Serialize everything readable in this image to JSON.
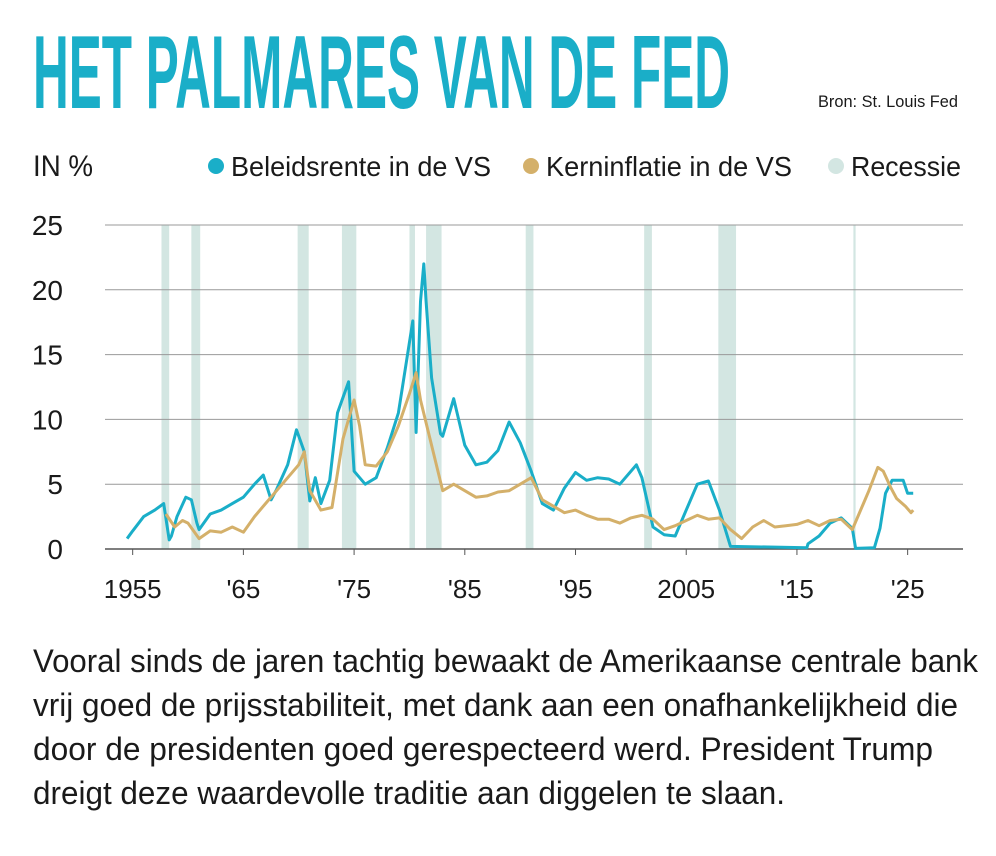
{
  "chart_data": {
    "type": "line",
    "title": "HET PALMARES VAN DE FED",
    "source": "Bron: St. Louis Fed",
    "y_label": "IN %",
    "xlim": [
      1952.5,
      2030
    ],
    "xticks": [
      1955,
      {
        "value": 1965,
        "label": "'65"
      },
      {
        "value": 1975,
        "label": "'75"
      },
      {
        "value": 1985,
        "label": "'85"
      },
      {
        "value": 1995,
        "label": "'95"
      },
      2005,
      {
        "value": 2015,
        "label": "'15"
      },
      {
        "value": 2025,
        "label": "'25"
      }
    ],
    "ylim": [
      0,
      25
    ],
    "yticks": [
      0,
      5,
      10,
      15,
      20,
      25
    ],
    "grid": true,
    "recession": {
      "name": "Recessie",
      "color": "#d3e6e2",
      "periods": [
        [
          1957.6,
          1958.3
        ],
        [
          1960.3,
          1961.1
        ],
        [
          1969.9,
          1970.9
        ],
        [
          1973.9,
          1975.2
        ],
        [
          1980.0,
          1980.5
        ],
        [
          1981.5,
          1982.9
        ],
        [
          1990.5,
          1991.2
        ],
        [
          2001.2,
          2001.9
        ],
        [
          2007.9,
          2009.5
        ],
        [
          2020.1,
          2020.3
        ]
      ]
    },
    "series": [
      {
        "name": "Beleidsrente in de VS",
        "color": "#1aaec8",
        "x": [
          1954.5,
          1955,
          1956,
          1957,
          1957.8,
          1958.3,
          1958.5,
          1959,
          1959.8,
          1960.3,
          1960.8,
          1961,
          1962,
          1963,
          1964,
          1965,
          1966,
          1966.8,
          1967.5,
          1968,
          1969,
          1969.8,
          1970.5,
          1971,
          1971.5,
          1972,
          1972.8,
          1973.5,
          1974.5,
          1975,
          1976,
          1977,
          1978,
          1979,
          1980.3,
          1980.6,
          1981,
          1981.3,
          1981.5,
          1982,
          1982.8,
          1983,
          1984,
          1985,
          1986,
          1987,
          1988,
          1989,
          1990,
          1991,
          1992,
          1993,
          1994,
          1995,
          1996,
          1997,
          1998,
          1999,
          2000.5,
          2001,
          2002,
          2003,
          2004,
          2005,
          2006,
          2007,
          2008,
          2009,
          2015.9,
          2016,
          2017,
          2018,
          2019,
          2020,
          2020.3,
          2022,
          2022.5,
          2023,
          2023.6,
          2024.6,
          2025,
          2025.5
        ],
        "values": [
          0.8,
          1.4,
          2.5,
          3.0,
          3.5,
          0.7,
          1.0,
          2.5,
          4.0,
          3.8,
          2.0,
          1.5,
          2.7,
          3.0,
          3.5,
          4.0,
          5.0,
          5.7,
          3.8,
          4.6,
          6.5,
          9.2,
          7.5,
          3.7,
          5.5,
          3.5,
          5.3,
          10.5,
          12.9,
          6.0,
          5.0,
          5.5,
          7.8,
          10.5,
          17.6,
          9.0,
          19.1,
          22.0,
          19.1,
          13.2,
          8.9,
          8.7,
          11.6,
          8.0,
          6.5,
          6.7,
          7.6,
          9.8,
          8.2,
          6.0,
          3.5,
          3.0,
          4.7,
          5.9,
          5.3,
          5.5,
          5.4,
          5.0,
          6.5,
          5.5,
          1.7,
          1.1,
          1.0,
          3.0,
          5.0,
          5.25,
          3.0,
          0.2,
          0.1,
          0.4,
          1.0,
          2.0,
          2.4,
          1.6,
          0.05,
          0.1,
          1.6,
          4.3,
          5.3,
          5.3,
          4.3,
          4.3
        ]
      },
      {
        "name": "Kerninflatie in de VS",
        "color": "#d4b06a",
        "x": [
          1958,
          1958.8,
          1959.5,
          1960,
          1961,
          1962,
          1963,
          1964,
          1965,
          1966,
          1967,
          1968,
          1969,
          1970,
          1970.5,
          1971,
          1972,
          1973,
          1974,
          1975,
          1975.5,
          1976,
          1977,
          1978,
          1979,
          1980,
          1980.6,
          1981,
          1982,
          1983,
          1984,
          1985,
          1986,
          1987,
          1988,
          1989,
          1990,
          1991,
          1992,
          1993,
          1994,
          1995,
          1996,
          1997,
          1998,
          1999,
          2000,
          2001,
          2002,
          2003,
          2004,
          2005,
          2006,
          2007,
          2008,
          2009,
          2010,
          2011,
          2012,
          2013,
          2014,
          2015,
          2016,
          2017,
          2018,
          2019,
          2020,
          2021,
          2021.5,
          2022.3,
          2022.8,
          2023.5,
          2024,
          2024.8,
          2025.3,
          2025.5
        ],
        "values": [
          2.7,
          1.7,
          2.2,
          2.0,
          0.8,
          1.4,
          1.3,
          1.7,
          1.3,
          2.5,
          3.5,
          4.5,
          5.5,
          6.5,
          7.5,
          4.5,
          3.0,
          3.2,
          8.5,
          11.5,
          9.5,
          6.5,
          6.4,
          7.5,
          9.5,
          12.0,
          13.6,
          11.5,
          8.0,
          4.5,
          5.0,
          4.5,
          4.0,
          4.1,
          4.4,
          4.5,
          5.0,
          5.5,
          3.8,
          3.3,
          2.8,
          3.0,
          2.6,
          2.3,
          2.3,
          2.0,
          2.4,
          2.6,
          2.3,
          1.5,
          1.8,
          2.2,
          2.6,
          2.3,
          2.4,
          1.5,
          0.8,
          1.7,
          2.2,
          1.7,
          1.8,
          1.9,
          2.2,
          1.8,
          2.2,
          2.3,
          1.5,
          3.5,
          4.5,
          6.3,
          6.0,
          4.7,
          3.9,
          3.3,
          2.8,
          3.0
        ]
      }
    ],
    "caption": [
      "Vooral sinds de jaren tachtig bewaakt de Amerikaanse centrale bank",
      "vrij goed de prijsstabiliteit, met dank aan een onafhankelijkheid die",
      "door de presidenten goed gerespecteerd werd. President Trump",
      "dreigt deze waardevolle traditie aan diggelen te slaan."
    ]
  }
}
